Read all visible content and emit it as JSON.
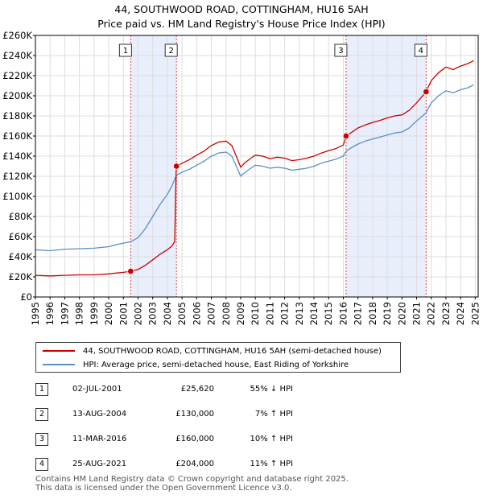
{
  "title_line1": "44, SOUTHWOOD ROAD, COTTINGHAM, HU16 5AH",
  "title_line2": "Price paid vs. HM Land Registry's House Price Index (HPI)",
  "legend": {
    "property": "44, SOUTHWOOD ROAD, COTTINGHAM, HU16 5AH (semi-detached house)",
    "hpi": "HPI: Average price, semi-detached house, East Riding of Yorkshire"
  },
  "colors": {
    "property": "#cc0000",
    "hpi": "#5b8fc9",
    "shade": "#e8eefb",
    "grid": "#dddddd"
  },
  "sales": [
    {
      "num": "1",
      "date": "02-JUL-2001",
      "price": "£25,620",
      "hpi": "55% ↓ HPI"
    },
    {
      "num": "2",
      "date": "13-AUG-2004",
      "price": "£130,000",
      "hpi": "7% ↑ HPI"
    },
    {
      "num": "3",
      "date": "11-MAR-2016",
      "price": "£160,000",
      "hpi": "10% ↑ HPI"
    },
    {
      "num": "4",
      "date": "25-AUG-2021",
      "price": "£204,000",
      "hpi": "11% ↑ HPI"
    }
  ],
  "footer_line1": "Contains HM Land Registry data © Crown copyright and database right 2025.",
  "footer_line2": "This data is licensed under the Open Government Licence v3.0.",
  "chart_data": {
    "type": "line",
    "title": "44, SOUTHWOOD ROAD, COTTINGHAM, HU16 5AH",
    "subtitle": "Price paid vs. HM Land Registry's House Price Index (HPI)",
    "xlim": [
      1995,
      2025.2
    ],
    "ylim": [
      0,
      260000
    ],
    "xticks": [
      1995,
      1996,
      1997,
      1998,
      1999,
      2000,
      2001,
      2002,
      2003,
      2004,
      2005,
      2006,
      2007,
      2008,
      2009,
      2010,
      2011,
      2012,
      2013,
      2014,
      2015,
      2016,
      2017,
      2018,
      2019,
      2020,
      2021,
      2022,
      2023,
      2024,
      2025
    ],
    "yticks": [
      0,
      20000,
      40000,
      60000,
      80000,
      100000,
      120000,
      140000,
      160000,
      180000,
      200000,
      220000,
      240000,
      260000
    ],
    "ytick_labels": [
      "£0",
      "£20K",
      "£40K",
      "£60K",
      "£80K",
      "£100K",
      "£120K",
      "£140K",
      "£160K",
      "£180K",
      "£200K",
      "£220K",
      "£240K",
      "£260K"
    ],
    "shaded_ranges": [
      [
        2001.5,
        2004.62
      ],
      [
        2016.19,
        2021.65
      ]
    ],
    "series": [
      {
        "name": "HPI: Average price, semi-detached house, East Riding of Yorkshire",
        "color": "#5b8fc9",
        "points": [
          [
            1995.0,
            47000
          ],
          [
            1996.0,
            46000
          ],
          [
            1997.0,
            47500
          ],
          [
            1998.0,
            48000
          ],
          [
            1999.0,
            48500
          ],
          [
            2000.0,
            50000
          ],
          [
            2000.5,
            52000
          ],
          [
            2001.0,
            53500
          ],
          [
            2001.5,
            55000
          ],
          [
            2002.0,
            59000
          ],
          [
            2002.5,
            68000
          ],
          [
            2003.0,
            80000
          ],
          [
            2003.5,
            92000
          ],
          [
            2004.0,
            102000
          ],
          [
            2004.3,
            110000
          ],
          [
            2004.62,
            121000
          ],
          [
            2005.0,
            124000
          ],
          [
            2005.5,
            127000
          ],
          [
            2006.0,
            131000
          ],
          [
            2006.5,
            135000
          ],
          [
            2007.0,
            140000
          ],
          [
            2007.5,
            143000
          ],
          [
            2008.0,
            144000
          ],
          [
            2008.4,
            140000
          ],
          [
            2008.7,
            130000
          ],
          [
            2009.0,
            120000
          ],
          [
            2009.3,
            124000
          ],
          [
            2009.7,
            128000
          ],
          [
            2010.0,
            131000
          ],
          [
            2010.5,
            130000
          ],
          [
            2011.0,
            128000
          ],
          [
            2011.5,
            129000
          ],
          [
            2012.0,
            128000
          ],
          [
            2012.5,
            126000
          ],
          [
            2013.0,
            127000
          ],
          [
            2013.5,
            128000
          ],
          [
            2014.0,
            130000
          ],
          [
            2014.5,
            133000
          ],
          [
            2015.0,
            135000
          ],
          [
            2015.5,
            137000
          ],
          [
            2016.0,
            140000
          ],
          [
            2016.19,
            145000
          ],
          [
            2016.5,
            148000
          ],
          [
            2017.0,
            152000
          ],
          [
            2017.5,
            155000
          ],
          [
            2018.0,
            157000
          ],
          [
            2018.5,
            159000
          ],
          [
            2019.0,
            161000
          ],
          [
            2019.5,
            163000
          ],
          [
            2020.0,
            164000
          ],
          [
            2020.5,
            168000
          ],
          [
            2021.0,
            175000
          ],
          [
            2021.65,
            183000
          ],
          [
            2022.0,
            193000
          ],
          [
            2022.5,
            200000
          ],
          [
            2023.0,
            205000
          ],
          [
            2023.5,
            203000
          ],
          [
            2024.0,
            206000
          ],
          [
            2024.5,
            208000
          ],
          [
            2024.9,
            211000
          ]
        ]
      },
      {
        "name": "44, SOUTHWOOD ROAD, COTTINGHAM, HU16 5AH (semi-detached house)",
        "color": "#cc0000",
        "points": [
          [
            1995.0,
            21500
          ],
          [
            1996.0,
            21000
          ],
          [
            1997.0,
            21500
          ],
          [
            1998.0,
            22000
          ],
          [
            1999.0,
            22000
          ],
          [
            2000.0,
            23000
          ],
          [
            2000.5,
            23800
          ],
          [
            2001.0,
            24500
          ],
          [
            2001.5,
            25620
          ],
          [
            2002.0,
            27400
          ],
          [
            2002.5,
            31500
          ],
          [
            2003.0,
            37000
          ],
          [
            2003.5,
            42500
          ],
          [
            2004.0,
            47000
          ],
          [
            2004.3,
            50500
          ],
          [
            2004.5,
            55000
          ],
          [
            2004.6,
            125000
          ],
          [
            2004.62,
            130000
          ],
          [
            2005.0,
            133000
          ],
          [
            2005.5,
            136500
          ],
          [
            2006.0,
            141000
          ],
          [
            2006.5,
            145000
          ],
          [
            2007.0,
            150500
          ],
          [
            2007.5,
            154000
          ],
          [
            2008.0,
            155000
          ],
          [
            2008.4,
            150500
          ],
          [
            2008.7,
            140000
          ],
          [
            2009.0,
            129000
          ],
          [
            2009.3,
            133500
          ],
          [
            2009.7,
            138000
          ],
          [
            2010.0,
            141000
          ],
          [
            2010.5,
            140000
          ],
          [
            2011.0,
            137500
          ],
          [
            2011.5,
            139000
          ],
          [
            2012.0,
            138000
          ],
          [
            2012.5,
            135500
          ],
          [
            2013.0,
            136500
          ],
          [
            2013.5,
            138000
          ],
          [
            2014.0,
            140000
          ],
          [
            2014.5,
            143000
          ],
          [
            2015.0,
            145500
          ],
          [
            2015.5,
            147500
          ],
          [
            2016.0,
            151000
          ],
          [
            2016.19,
            160000
          ],
          [
            2016.5,
            163000
          ],
          [
            2017.0,
            168000
          ],
          [
            2017.5,
            171000
          ],
          [
            2018.0,
            173500
          ],
          [
            2018.5,
            175500
          ],
          [
            2019.0,
            178000
          ],
          [
            2019.5,
            180000
          ],
          [
            2020.0,
            181000
          ],
          [
            2020.5,
            185500
          ],
          [
            2021.0,
            193000
          ],
          [
            2021.65,
            204000
          ],
          [
            2022.0,
            215000
          ],
          [
            2022.5,
            223000
          ],
          [
            2023.0,
            228500
          ],
          [
            2023.5,
            226000
          ],
          [
            2024.0,
            229500
          ],
          [
            2024.5,
            232000
          ],
          [
            2024.9,
            235000
          ]
        ]
      }
    ],
    "sale_markers": [
      {
        "label": "1",
        "x": 2001.5,
        "y": 25620
      },
      {
        "label": "2",
        "x": 2004.62,
        "y": 130000
      },
      {
        "label": "3",
        "x": 2016.19,
        "y": 160000
      },
      {
        "label": "4",
        "x": 2021.65,
        "y": 204000
      }
    ]
  }
}
